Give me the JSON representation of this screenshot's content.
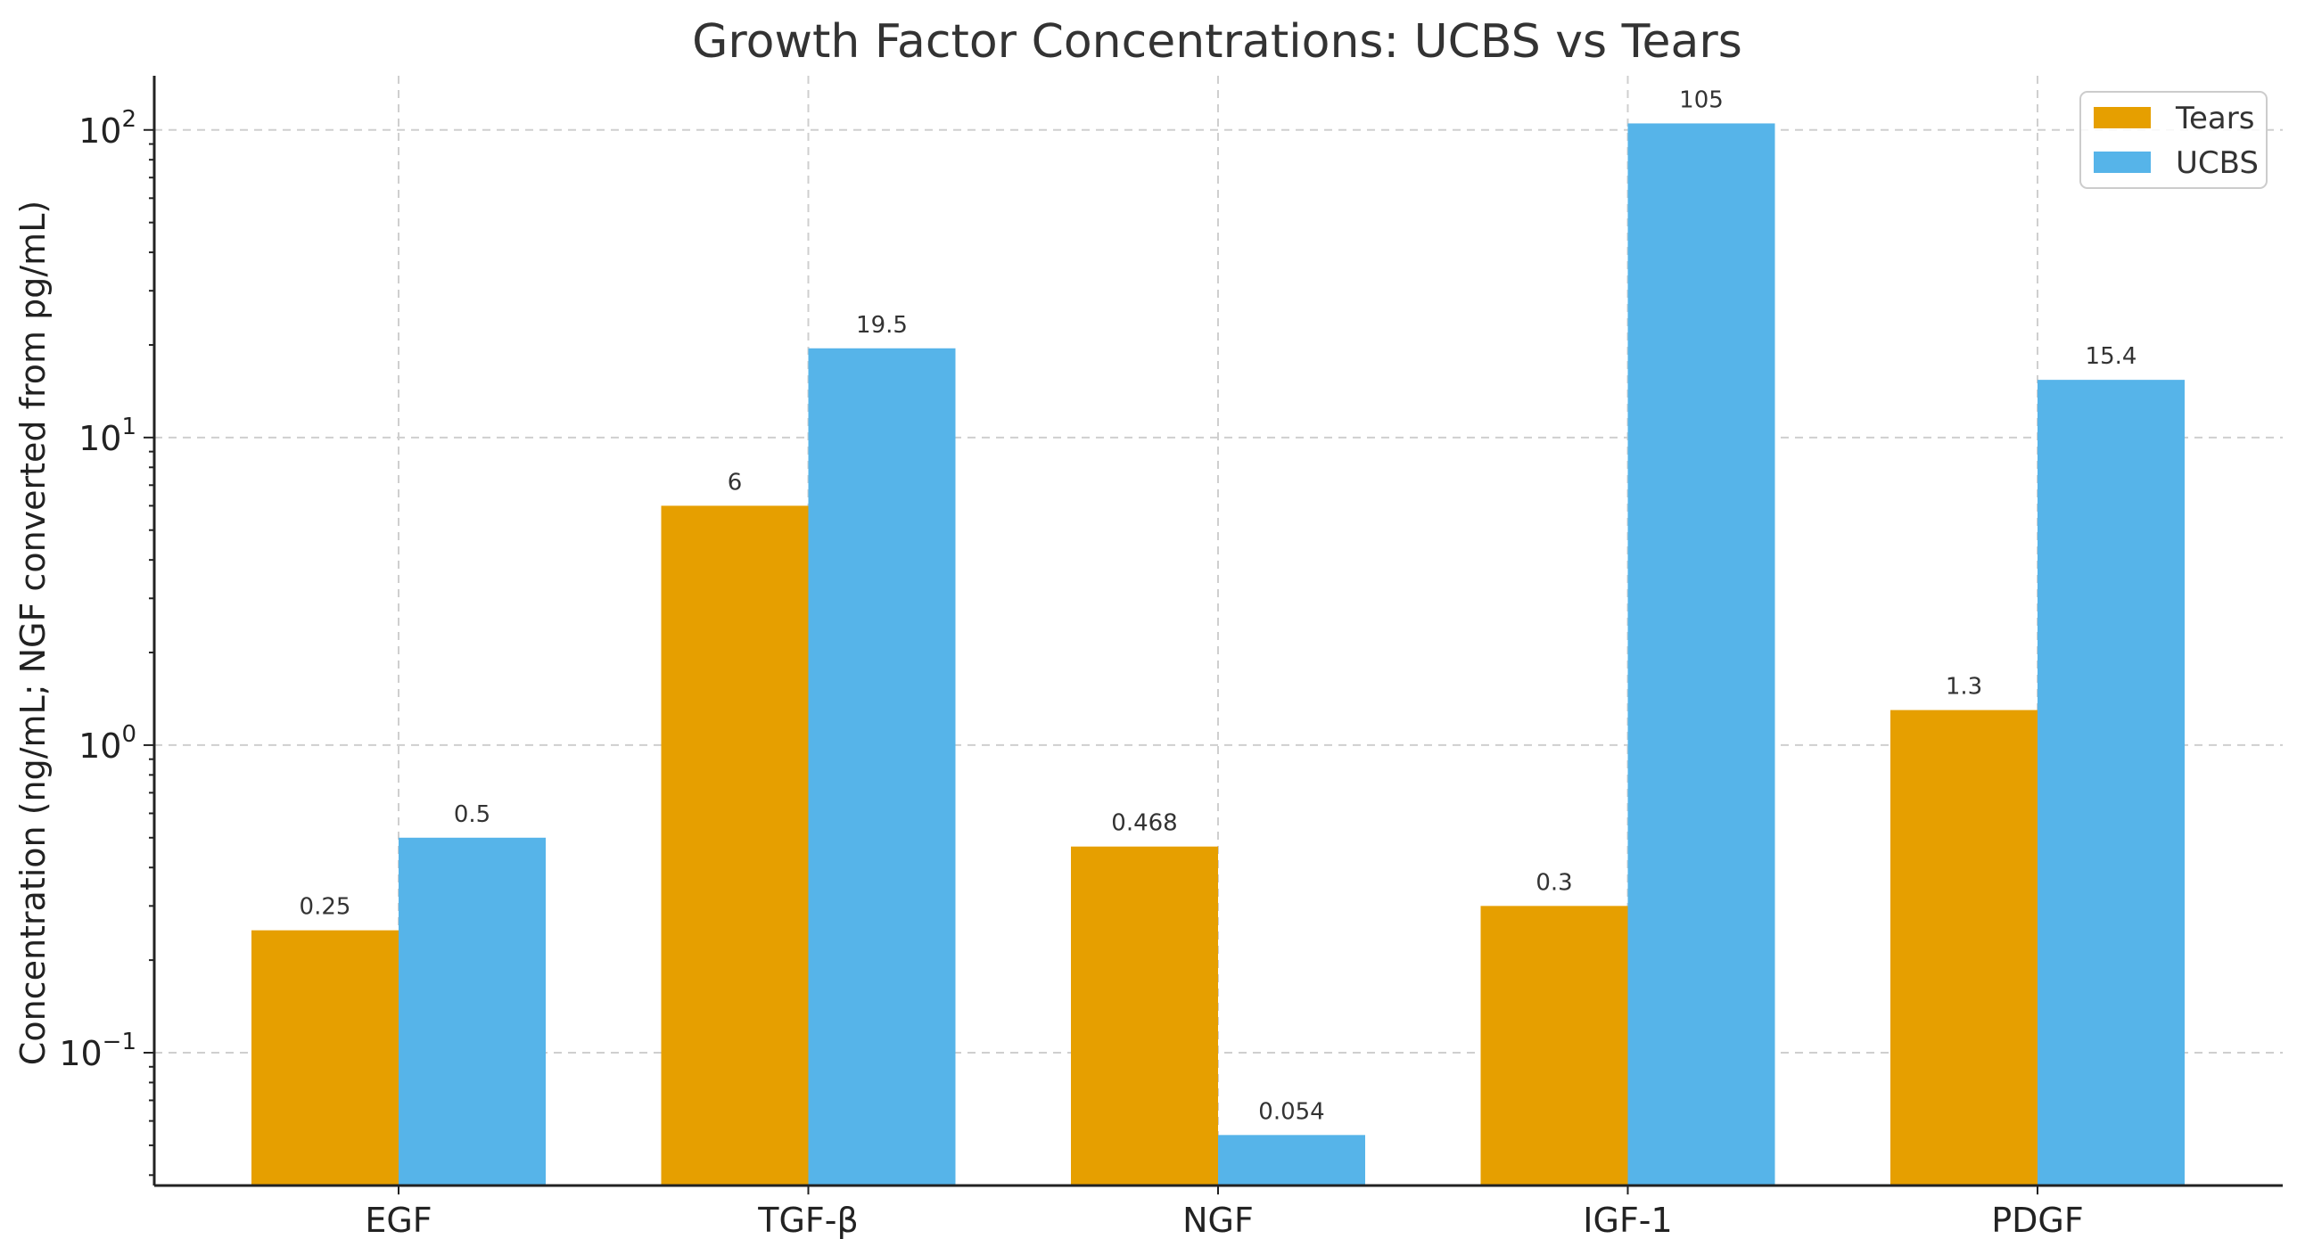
{
  "chart_data": {
    "type": "bar",
    "title": "Growth Factor Concentrations: UCBS vs Tears",
    "xlabel": "",
    "ylabel": "Concentration (ng/mL; NGF converted from pg/mL)",
    "yscale": "log",
    "ylim": [
      0.037,
      150
    ],
    "categories": [
      "EGF",
      "TGF-β",
      "NGF",
      "IGF-1",
      "PDGF"
    ],
    "series": [
      {
        "name": "Tears",
        "color": "#E69F00",
        "values": [
          0.25,
          6,
          0.468,
          0.3,
          1.3
        ],
        "labels": [
          "0.25",
          "6",
          "0.468",
          "0.3",
          "1.3"
        ]
      },
      {
        "name": "UCBS",
        "color": "#56B4E9",
        "values": [
          0.5,
          19.5,
          0.054,
          105,
          15.4
        ],
        "labels": [
          "0.5",
          "19.5",
          "0.054",
          "105",
          "15.4"
        ]
      }
    ],
    "yticks": [
      {
        "value": 0.1,
        "base": "10",
        "exp": "−1"
      },
      {
        "value": 1,
        "base": "10",
        "exp": "0"
      },
      {
        "value": 10,
        "base": "10",
        "exp": "1"
      },
      {
        "value": 100,
        "base": "10",
        "exp": "2"
      }
    ],
    "grid": true,
    "legend_position": "top-right"
  }
}
